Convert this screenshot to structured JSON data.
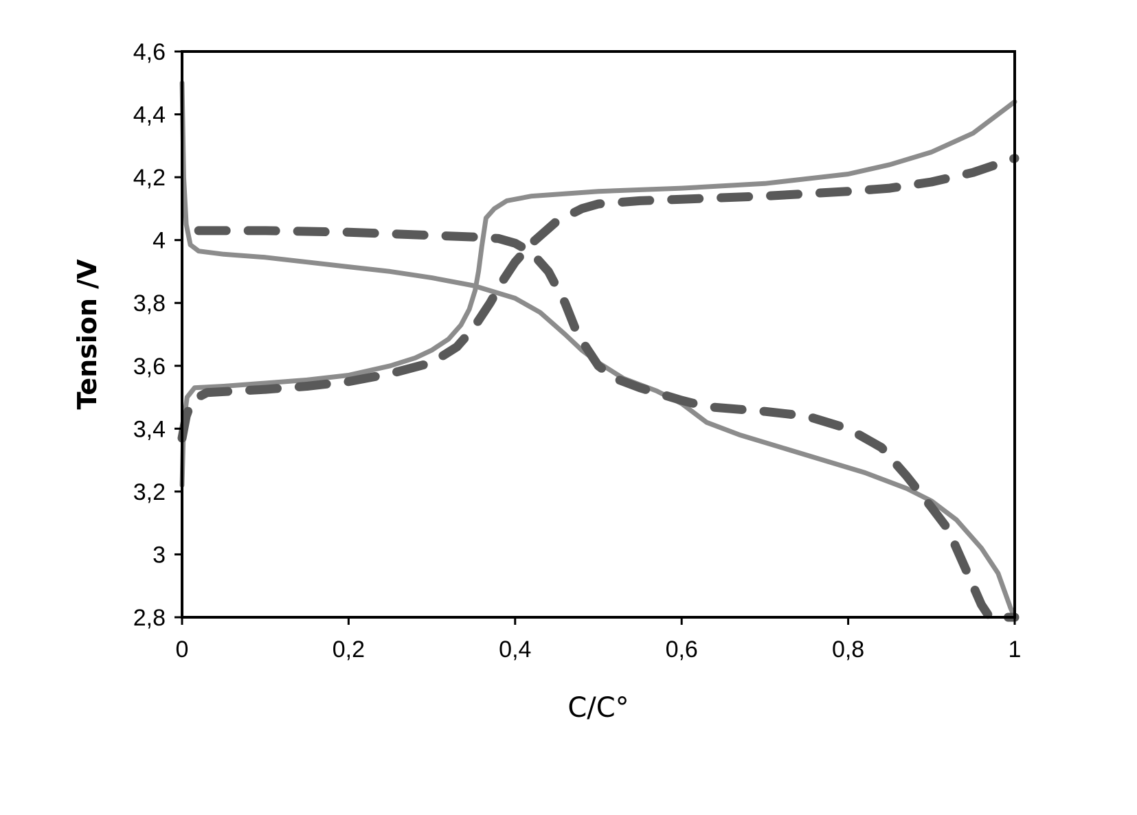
{
  "chart_data": {
    "type": "line",
    "title": "",
    "xlabel": "C/C°",
    "ylabel": "Tension /V",
    "xlim": [
      0,
      1
    ],
    "ylim": [
      2.8,
      4.6
    ],
    "x_ticks": [
      "0",
      "0,2",
      "0,4",
      "0,6",
      "0,8",
      "1"
    ],
    "y_ticks": [
      "2,8",
      "3",
      "3,2",
      "3,4",
      "3,6",
      "3,8",
      "4",
      "4,2",
      "4,4",
      "4,6"
    ],
    "grid": false,
    "legend": "none",
    "series": [
      {
        "style": "solid",
        "color": "#8c8c8c",
        "points": [
          [
            0.0,
            3.22
          ],
          [
            0.002,
            3.42
          ],
          [
            0.006,
            3.5
          ],
          [
            0.015,
            3.53
          ],
          [
            0.05,
            3.535
          ],
          [
            0.1,
            3.545
          ],
          [
            0.15,
            3.555
          ],
          [
            0.2,
            3.57
          ],
          [
            0.25,
            3.6
          ],
          [
            0.28,
            3.625
          ],
          [
            0.3,
            3.65
          ],
          [
            0.32,
            3.685
          ],
          [
            0.335,
            3.73
          ],
          [
            0.345,
            3.78
          ],
          [
            0.352,
            3.84
          ],
          [
            0.356,
            3.9
          ],
          [
            0.36,
            3.98
          ],
          [
            0.365,
            4.07
          ],
          [
            0.375,
            4.1
          ],
          [
            0.39,
            4.125
          ],
          [
            0.42,
            4.14
          ],
          [
            0.5,
            4.155
          ],
          [
            0.6,
            4.165
          ],
          [
            0.7,
            4.18
          ],
          [
            0.8,
            4.21
          ],
          [
            0.85,
            4.24
          ],
          [
            0.9,
            4.28
          ],
          [
            0.95,
            4.34
          ],
          [
            1.0,
            4.44
          ]
        ]
      },
      {
        "style": "solid",
        "color": "#8c8c8c",
        "points": [
          [
            0.0,
            4.5
          ],
          [
            0.002,
            4.2
          ],
          [
            0.005,
            4.05
          ],
          [
            0.01,
            3.985
          ],
          [
            0.02,
            3.965
          ],
          [
            0.05,
            3.955
          ],
          [
            0.1,
            3.945
          ],
          [
            0.15,
            3.93
          ],
          [
            0.2,
            3.915
          ],
          [
            0.25,
            3.9
          ],
          [
            0.3,
            3.88
          ],
          [
            0.35,
            3.855
          ],
          [
            0.4,
            3.815
          ],
          [
            0.43,
            3.77
          ],
          [
            0.46,
            3.7
          ],
          [
            0.48,
            3.65
          ],
          [
            0.5,
            3.61
          ],
          [
            0.53,
            3.56
          ],
          [
            0.57,
            3.52
          ],
          [
            0.6,
            3.48
          ],
          [
            0.63,
            3.42
          ],
          [
            0.67,
            3.38
          ],
          [
            0.72,
            3.34
          ],
          [
            0.77,
            3.3
          ],
          [
            0.82,
            3.26
          ],
          [
            0.87,
            3.21
          ],
          [
            0.9,
            3.17
          ],
          [
            0.93,
            3.11
          ],
          [
            0.96,
            3.02
          ],
          [
            0.98,
            2.94
          ],
          [
            0.995,
            2.83
          ],
          [
            1.0,
            2.8
          ]
        ]
      },
      {
        "style": "dashed",
        "color": "#595959",
        "points": [
          [
            0.0,
            3.37
          ],
          [
            0.005,
            3.44
          ],
          [
            0.012,
            3.49
          ],
          [
            0.03,
            3.515
          ],
          [
            0.1,
            3.525
          ],
          [
            0.15,
            3.535
          ],
          [
            0.2,
            3.55
          ],
          [
            0.25,
            3.575
          ],
          [
            0.3,
            3.61
          ],
          [
            0.33,
            3.66
          ],
          [
            0.35,
            3.72
          ],
          [
            0.37,
            3.8
          ],
          [
            0.385,
            3.87
          ],
          [
            0.4,
            3.93
          ],
          [
            0.42,
            3.99
          ],
          [
            0.45,
            4.06
          ],
          [
            0.48,
            4.1
          ],
          [
            0.5,
            4.115
          ],
          [
            0.55,
            4.125
          ],
          [
            0.6,
            4.13
          ],
          [
            0.7,
            4.14
          ],
          [
            0.8,
            4.155
          ],
          [
            0.85,
            4.165
          ],
          [
            0.9,
            4.185
          ],
          [
            0.95,
            4.215
          ],
          [
            1.0,
            4.26
          ]
        ]
      },
      {
        "style": "dashed",
        "color": "#595959",
        "points": [
          [
            0.02,
            4.03
          ],
          [
            0.1,
            4.03
          ],
          [
            0.2,
            4.025
          ],
          [
            0.3,
            4.015
          ],
          [
            0.35,
            4.01
          ],
          [
            0.38,
            4.005
          ],
          [
            0.4,
            3.99
          ],
          [
            0.42,
            3.96
          ],
          [
            0.44,
            3.9
          ],
          [
            0.46,
            3.8
          ],
          [
            0.475,
            3.7
          ],
          [
            0.49,
            3.64
          ],
          [
            0.5,
            3.6
          ],
          [
            0.52,
            3.56
          ],
          [
            0.55,
            3.53
          ],
          [
            0.6,
            3.49
          ],
          [
            0.63,
            3.47
          ],
          [
            0.7,
            3.455
          ],
          [
            0.75,
            3.44
          ],
          [
            0.8,
            3.4
          ],
          [
            0.84,
            3.34
          ],
          [
            0.87,
            3.25
          ],
          [
            0.9,
            3.15
          ],
          [
            0.92,
            3.08
          ],
          [
            0.94,
            2.96
          ],
          [
            0.96,
            2.84
          ],
          [
            0.97,
            2.8
          ],
          [
            1.0,
            2.8
          ]
        ]
      }
    ]
  }
}
